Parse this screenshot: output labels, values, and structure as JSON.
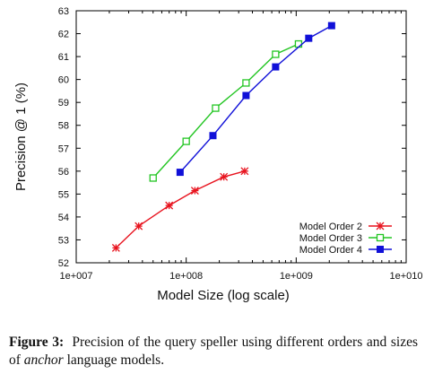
{
  "chart_data": {
    "type": "line",
    "xlabel": "Model Size (log scale)",
    "ylabel": "Precision @ 1 (%)",
    "xscale": "log",
    "xlim": [
      10000000,
      10000000000
    ],
    "ylim": [
      52,
      63
    ],
    "xticks": [
      10000000,
      100000000,
      1000000000,
      10000000000
    ],
    "xtick_labels": [
      "1e+007",
      "1e+008",
      "1e+009",
      "1e+010"
    ],
    "yticks": [
      52,
      53,
      54,
      55,
      56,
      57,
      58,
      59,
      60,
      61,
      62,
      63
    ],
    "ytick_labels": [
      "52",
      "53",
      "54",
      "55",
      "56",
      "57",
      "58",
      "59",
      "60",
      "61",
      "62",
      "63"
    ],
    "grid": false,
    "legend_position": "bottom-right",
    "series": [
      {
        "name": "Model Order 2",
        "color": "#e8141f",
        "marker": "asterisk",
        "points": [
          {
            "x": 23000000,
            "y": 52.65
          },
          {
            "x": 37000000,
            "y": 53.6
          },
          {
            "x": 70000000,
            "y": 54.5
          },
          {
            "x": 120000000,
            "y": 55.15
          },
          {
            "x": 220000000,
            "y": 55.75
          },
          {
            "x": 340000000,
            "y": 56.0
          }
        ]
      },
      {
        "name": "Model Order 3",
        "color": "#22c522",
        "marker": "square-open",
        "points": [
          {
            "x": 50000000,
            "y": 55.7
          },
          {
            "x": 100000000,
            "y": 57.3
          },
          {
            "x": 185000000,
            "y": 58.75
          },
          {
            "x": 350000000,
            "y": 59.85
          },
          {
            "x": 650000000,
            "y": 61.1
          },
          {
            "x": 1050000000,
            "y": 61.55
          }
        ]
      },
      {
        "name": "Model Order 4",
        "color": "#1010d8",
        "marker": "square-filled",
        "points": [
          {
            "x": 88000000,
            "y": 55.95
          },
          {
            "x": 175000000,
            "y": 57.55
          },
          {
            "x": 350000000,
            "y": 59.3
          },
          {
            "x": 650000000,
            "y": 60.55
          },
          {
            "x": 1300000000,
            "y": 61.8
          },
          {
            "x": 2100000000,
            "y": 62.35
          }
        ]
      }
    ]
  },
  "caption": {
    "label": "Figure 3:",
    "text_before": "Precision of the query speller using different orders and sizes of ",
    "emphasis": "anchor",
    "text_after": " language models."
  }
}
